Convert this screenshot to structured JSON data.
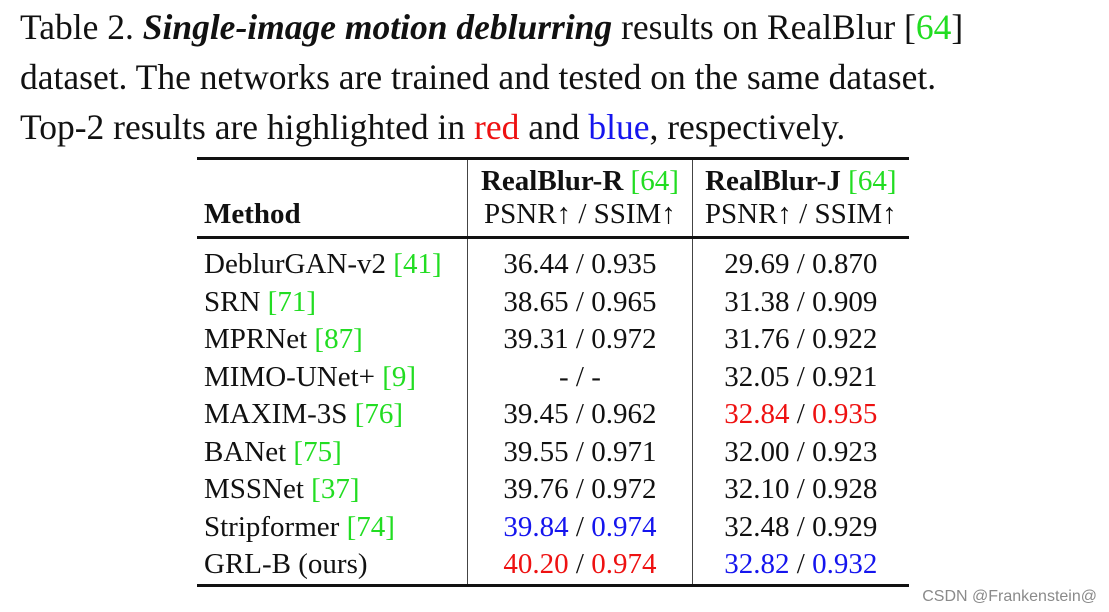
{
  "caption": {
    "label": "Table 2.",
    "emphasis": "Single-image motion deblurring",
    "pre_cite": "results on RealBlur [",
    "cite": "64",
    "post_cite": "]",
    "line2": "dataset.  The networks are trained and tested on the same dataset.",
    "line3_a": "Top-2 results are highlighted in",
    "red_word": "red",
    "and_word": "and",
    "blue_word": "blue",
    "line3_b": ", respectively."
  },
  "table": {
    "method_header": "Method",
    "groups": [
      {
        "name": "RealBlur-R",
        "cite": "64",
        "metric": "PSNR↑ / SSIM↑"
      },
      {
        "name": "RealBlur-J",
        "cite": "64",
        "metric": "PSNR↑ / SSIM↑"
      }
    ],
    "separator": " / ",
    "rows": [
      {
        "method": "DeblurGAN-v2",
        "cite": "41",
        "r": [
          "36.44",
          "0.935"
        ],
        "j": [
          "29.69",
          "0.870"
        ]
      },
      {
        "method": "SRN",
        "cite": "71",
        "r": [
          "38.65",
          "0.965"
        ],
        "j": [
          "31.38",
          "0.909"
        ]
      },
      {
        "method": "MPRNet",
        "cite": "87",
        "r": [
          "39.31",
          "0.972"
        ],
        "j": [
          "31.76",
          "0.922"
        ]
      },
      {
        "method": "MIMO-UNet+",
        "cite": "9",
        "r": [
          "-",
          "-"
        ],
        "j": [
          "32.05",
          "0.921"
        ]
      },
      {
        "method": "MAXIM-3S",
        "cite": "76",
        "r": [
          "39.45",
          "0.962"
        ],
        "j": [
          "32.84",
          "0.935"
        ]
      },
      {
        "method": "BANet",
        "cite": "75",
        "r": [
          "39.55",
          "0.971"
        ],
        "j": [
          "32.00",
          "0.923"
        ]
      },
      {
        "method": "MSSNet",
        "cite": "37",
        "r": [
          "39.76",
          "0.972"
        ],
        "j": [
          "32.10",
          "0.928"
        ]
      },
      {
        "method": "Stripformer",
        "cite": "74",
        "r": [
          "39.84",
          "0.974"
        ],
        "j": [
          "32.48",
          "0.929"
        ]
      },
      {
        "method": "GRL-B (ours)",
        "cite": "",
        "r": [
          "40.20",
          "0.974"
        ],
        "j": [
          "32.82",
          "0.932"
        ]
      }
    ],
    "highlight": {
      "red": [
        {
          "row": 8,
          "col": "r",
          "idx": 0
        },
        {
          "row": 8,
          "col": "r",
          "idx": 1
        },
        {
          "row": 4,
          "col": "j",
          "idx": 0
        },
        {
          "row": 4,
          "col": "j",
          "idx": 1
        }
      ],
      "blue": [
        {
          "row": 7,
          "col": "r",
          "idx": 0
        },
        {
          "row": 7,
          "col": "r",
          "idx": 1
        },
        {
          "row": 8,
          "col": "j",
          "idx": 0
        },
        {
          "row": 8,
          "col": "j",
          "idx": 1
        }
      ]
    },
    "colors": {
      "cite": "#22dd22",
      "red": "#ee1111",
      "blue": "#1515ee",
      "text": "#111111"
    }
  },
  "watermark": "CSDN @Frankenstein@"
}
